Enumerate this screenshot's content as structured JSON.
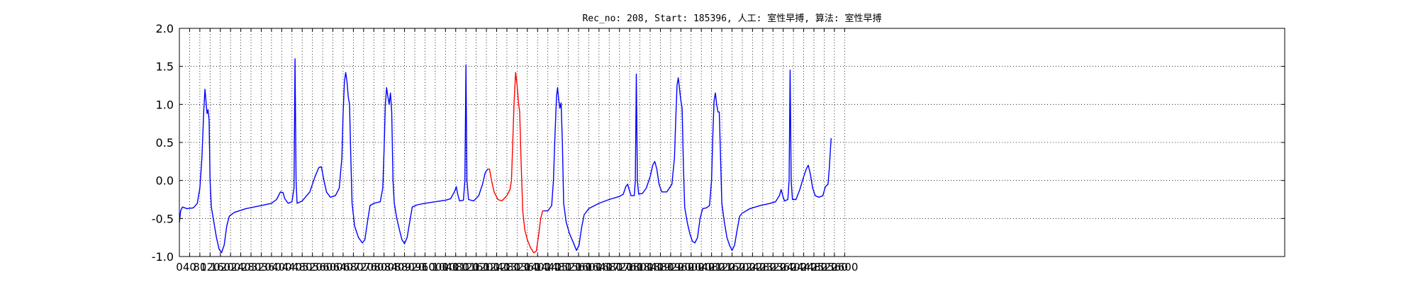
{
  "chart_data": {
    "type": "line",
    "title": "Rec_no: 208, Start: 185396, 人工: 室性早搏, 算法: 室性早搏",
    "xlabel": "",
    "ylabel": "",
    "xlim": [
      0,
      4320
    ],
    "ylim": [
      -1.0,
      2.0
    ],
    "grid": true,
    "grid_style": "dotted",
    "yticks": [
      "-1.0",
      "-0.5",
      "0.0",
      "0.5",
      "1.0",
      "1.5",
      "2.0"
    ],
    "xticks": [
      "0",
      "40",
      "80",
      "120",
      "160",
      "200",
      "240",
      "280",
      "320",
      "360",
      "400",
      "440",
      "480",
      "520",
      "560",
      "600",
      "640",
      "680",
      "720",
      "760",
      "800",
      "840",
      "880",
      "920",
      "960",
      "1000",
      "1040",
      "1080",
      "1120",
      "1160",
      "1200",
      "1240",
      "1280",
      "1320",
      "1360",
      "1400",
      "1440",
      "1480",
      "1520",
      "1560",
      "1600",
      "1640",
      "1680",
      "1720",
      "1760",
      "1800",
      "1840",
      "1880",
      "1920",
      "1960",
      "2000",
      "2040",
      "2080",
      "2120",
      "2160",
      "2200",
      "2240",
      "2280",
      "2320",
      "2360",
      "2400",
      "2440",
      "2480",
      "2520",
      "2560",
      "2600"
    ],
    "colors": {
      "signal": "#0000ff",
      "highlight": "#ff0000"
    },
    "series": [
      {
        "color": "#0000ff",
        "points": [
          [
            0,
            -0.55
          ],
          [
            5,
            -0.4
          ],
          [
            12,
            -0.35
          ],
          [
            30,
            -0.37
          ],
          [
            55,
            -0.36
          ],
          [
            70,
            -0.3
          ],
          [
            80,
            -0.1
          ],
          [
            88,
            0.3
          ],
          [
            95,
            0.9
          ],
          [
            100,
            1.2
          ],
          [
            104,
            1.05
          ],
          [
            108,
            0.88
          ],
          [
            112,
            0.93
          ],
          [
            116,
            0.8
          ],
          [
            120,
            0.0
          ],
          [
            125,
            -0.35
          ],
          [
            135,
            -0.55
          ],
          [
            145,
            -0.75
          ],
          [
            155,
            -0.9
          ],
          [
            165,
            -0.95
          ],
          [
            175,
            -0.85
          ],
          [
            185,
            -0.6
          ],
          [
            195,
            -0.47
          ],
          [
            215,
            -0.42
          ],
          [
            260,
            -0.37
          ],
          [
            320,
            -0.33
          ],
          [
            360,
            -0.3
          ],
          [
            380,
            -0.25
          ],
          [
            395,
            -0.15
          ],
          [
            405,
            -0.16
          ],
          [
            412,
            -0.24
          ],
          [
            425,
            -0.3
          ],
          [
            440,
            -0.28
          ],
          [
            448,
            -0.1
          ],
          [
            452,
            1.6
          ],
          [
            456,
            0.0
          ],
          [
            460,
            -0.3
          ],
          [
            480,
            -0.27
          ],
          [
            510,
            -0.15
          ],
          [
            530,
            0.05
          ],
          [
            545,
            0.17
          ],
          [
            555,
            0.18
          ],
          [
            565,
            0.0
          ],
          [
            575,
            -0.15
          ],
          [
            590,
            -0.22
          ],
          [
            610,
            -0.2
          ],
          [
            625,
            -0.1
          ],
          [
            635,
            0.3
          ],
          [
            640,
            0.9
          ],
          [
            645,
            1.3
          ],
          [
            650,
            1.42
          ],
          [
            655,
            1.3
          ],
          [
            660,
            1.1
          ],
          [
            665,
            1.0
          ],
          [
            670,
            0.3
          ],
          [
            675,
            -0.3
          ],
          [
            685,
            -0.6
          ],
          [
            700,
            -0.75
          ],
          [
            715,
            -0.82
          ],
          [
            725,
            -0.78
          ],
          [
            735,
            -0.55
          ],
          [
            745,
            -0.33
          ],
          [
            760,
            -0.3
          ],
          [
            785,
            -0.28
          ],
          [
            795,
            -0.1
          ],
          [
            800,
            0.4
          ],
          [
            805,
            1.0
          ],
          [
            810,
            1.22
          ],
          [
            815,
            1.1
          ],
          [
            820,
            1.0
          ],
          [
            825,
            1.15
          ],
          [
            830,
            0.9
          ],
          [
            835,
            0.0
          ],
          [
            840,
            -0.3
          ],
          [
            850,
            -0.5
          ],
          [
            860,
            -0.65
          ],
          [
            870,
            -0.78
          ],
          [
            880,
            -0.83
          ],
          [
            890,
            -0.75
          ],
          [
            900,
            -0.55
          ],
          [
            910,
            -0.35
          ],
          [
            930,
            -0.32
          ],
          [
            960,
            -0.3
          ],
          [
            1000,
            -0.28
          ],
          [
            1040,
            -0.26
          ],
          [
            1060,
            -0.24
          ],
          [
            1075,
            -0.15
          ],
          [
            1082,
            -0.08
          ],
          [
            1088,
            -0.18
          ],
          [
            1095,
            -0.27
          ],
          [
            1110,
            -0.26
          ],
          [
            1116,
            0.0
          ],
          [
            1120,
            1.52
          ],
          [
            1124,
            0.0
          ],
          [
            1130,
            -0.25
          ],
          [
            1150,
            -0.27
          ],
          [
            1170,
            -0.2
          ],
          [
            1185,
            -0.05
          ],
          [
            1195,
            0.1
          ],
          [
            1205,
            0.15
          ]
        ]
      },
      {
        "color": "#ff0000",
        "points": [
          [
            1205,
            0.15
          ],
          [
            1212,
            0.15
          ],
          [
            1220,
            0.0
          ],
          [
            1230,
            -0.15
          ],
          [
            1245,
            -0.25
          ],
          [
            1260,
            -0.27
          ],
          [
            1280,
            -0.2
          ],
          [
            1292,
            -0.12
          ],
          [
            1298,
            0.0
          ],
          [
            1303,
            0.5
          ],
          [
            1308,
            1.0
          ],
          [
            1314,
            1.42
          ],
          [
            1320,
            1.25
          ],
          [
            1326,
            1.0
          ],
          [
            1330,
            0.9
          ],
          [
            1335,
            0.3
          ],
          [
            1342,
            -0.4
          ],
          [
            1350,
            -0.65
          ],
          [
            1360,
            -0.78
          ],
          [
            1372,
            -0.88
          ],
          [
            1385,
            -0.95
          ],
          [
            1395,
            -0.93
          ],
          [
            1405,
            -0.7
          ],
          [
            1412,
            -0.5
          ],
          [
            1420,
            -0.4
          ],
          [
            1428,
            -0.4
          ]
        ]
      },
      {
        "color": "#0000ff",
        "points": [
          [
            1428,
            -0.4
          ],
          [
            1440,
            -0.4
          ],
          [
            1455,
            -0.33
          ],
          [
            1462,
            0.0
          ],
          [
            1468,
            0.6
          ],
          [
            1474,
            1.1
          ],
          [
            1478,
            1.22
          ],
          [
            1483,
            1.05
          ],
          [
            1487,
            0.95
          ],
          [
            1492,
            1.02
          ],
          [
            1497,
            0.5
          ],
          [
            1502,
            -0.3
          ],
          [
            1512,
            -0.55
          ],
          [
            1525,
            -0.7
          ],
          [
            1540,
            -0.82
          ],
          [
            1552,
            -0.92
          ],
          [
            1562,
            -0.85
          ],
          [
            1572,
            -0.62
          ],
          [
            1582,
            -0.45
          ],
          [
            1600,
            -0.37
          ],
          [
            1640,
            -0.3
          ],
          [
            1680,
            -0.25
          ],
          [
            1720,
            -0.21
          ],
          [
            1735,
            -0.18
          ],
          [
            1745,
            -0.08
          ],
          [
            1752,
            -0.05
          ],
          [
            1758,
            -0.12
          ],
          [
            1765,
            -0.2
          ],
          [
            1778,
            -0.2
          ],
          [
            1782,
            0.0
          ],
          [
            1786,
            1.4
          ],
          [
            1790,
            0.0
          ],
          [
            1795,
            -0.18
          ],
          [
            1810,
            -0.17
          ],
          [
            1825,
            -0.1
          ],
          [
            1840,
            0.05
          ],
          [
            1850,
            0.2
          ],
          [
            1858,
            0.25
          ],
          [
            1866,
            0.15
          ],
          [
            1875,
            -0.05
          ],
          [
            1885,
            -0.15
          ],
          [
            1905,
            -0.15
          ],
          [
            1925,
            -0.05
          ],
          [
            1935,
            0.3
          ],
          [
            1940,
            0.8
          ],
          [
            1945,
            1.25
          ],
          [
            1950,
            1.35
          ],
          [
            1955,
            1.2
          ],
          [
            1960,
            1.05
          ],
          [
            1965,
            0.95
          ],
          [
            1970,
            0.2
          ],
          [
            1975,
            -0.35
          ],
          [
            1985,
            -0.55
          ],
          [
            1995,
            -0.7
          ],
          [
            2005,
            -0.8
          ],
          [
            2015,
            -0.82
          ],
          [
            2025,
            -0.75
          ],
          [
            2035,
            -0.5
          ],
          [
            2045,
            -0.37
          ],
          [
            2060,
            -0.36
          ],
          [
            2072,
            -0.33
          ],
          [
            2080,
            0.0
          ],
          [
            2085,
            0.6
          ],
          [
            2090,
            1.05
          ],
          [
            2095,
            1.15
          ],
          [
            2100,
            1.0
          ],
          [
            2105,
            0.9
          ],
          [
            2110,
            0.9
          ],
          [
            2115,
            0.3
          ],
          [
            2120,
            -0.3
          ],
          [
            2130,
            -0.55
          ],
          [
            2140,
            -0.75
          ],
          [
            2150,
            -0.85
          ],
          [
            2160,
            -0.92
          ],
          [
            2170,
            -0.85
          ],
          [
            2180,
            -0.65
          ],
          [
            2190,
            -0.47
          ],
          [
            2200,
            -0.43
          ],
          [
            2230,
            -0.37
          ],
          [
            2270,
            -0.33
          ],
          [
            2310,
            -0.3
          ],
          [
            2330,
            -0.28
          ],
          [
            2345,
            -0.2
          ],
          [
            2352,
            -0.12
          ],
          [
            2358,
            -0.2
          ],
          [
            2365,
            -0.27
          ],
          [
            2378,
            -0.25
          ],
          [
            2383,
            0.0
          ],
          [
            2387,
            1.45
          ],
          [
            2391,
            0.0
          ],
          [
            2396,
            -0.25
          ],
          [
            2410,
            -0.25
          ],
          [
            2425,
            -0.12
          ],
          [
            2440,
            0.05
          ],
          [
            2450,
            0.15
          ],
          [
            2458,
            0.2
          ],
          [
            2465,
            0.1
          ],
          [
            2475,
            -0.1
          ],
          [
            2485,
            -0.2
          ],
          [
            2500,
            -0.22
          ],
          [
            2515,
            -0.2
          ],
          [
            2525,
            -0.08
          ],
          [
            2535,
            -0.05
          ],
          [
            2540,
            0.15
          ],
          [
            2547,
            0.55
          ]
        ]
      }
    ]
  }
}
